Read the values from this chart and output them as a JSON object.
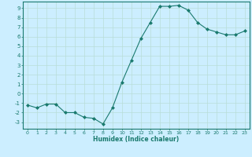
{
  "x": [
    0,
    1,
    2,
    3,
    4,
    5,
    6,
    7,
    8,
    9,
    10,
    11,
    12,
    13,
    14,
    15,
    16,
    17,
    18,
    19,
    20,
    21,
    22,
    23
  ],
  "y": [
    -1.2,
    -1.5,
    -1.1,
    -1.1,
    -2.0,
    -2.0,
    -2.5,
    -2.6,
    -3.2,
    -1.5,
    1.2,
    3.5,
    5.8,
    7.5,
    9.2,
    9.2,
    9.3,
    8.8,
    7.5,
    6.8,
    6.5,
    6.2,
    6.2,
    6.6
  ],
  "xlabel": "Humidex (Indice chaleur)",
  "xlim": [
    -0.5,
    23.5
  ],
  "ylim": [
    -3.7,
    9.7
  ],
  "yticks": [
    -3,
    -2,
    -1,
    0,
    1,
    2,
    3,
    4,
    5,
    6,
    7,
    8,
    9
  ],
  "xticks": [
    0,
    1,
    2,
    3,
    4,
    5,
    6,
    7,
    8,
    9,
    10,
    11,
    12,
    13,
    14,
    15,
    16,
    17,
    18,
    19,
    20,
    21,
    22,
    23
  ],
  "line_color": "#1a7a6e",
  "marker_color": "#1a7a6e",
  "bg_color": "#cceeff",
  "grid_color": "#b8ddd8",
  "xlabel_color": "#1a7a6e"
}
